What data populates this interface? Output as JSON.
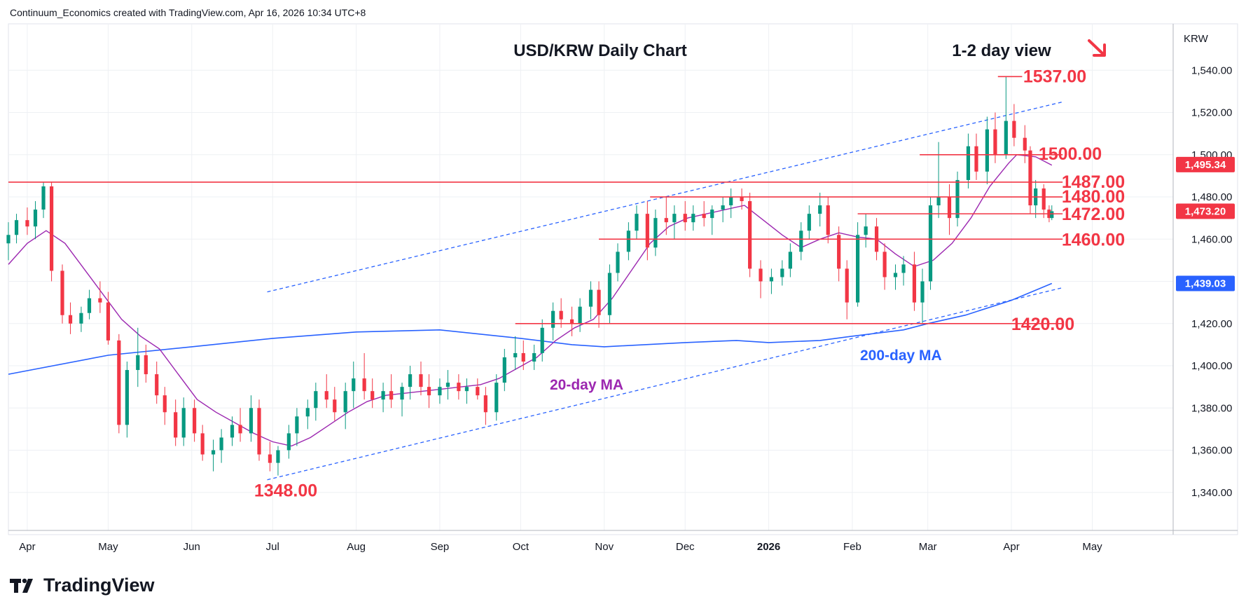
{
  "header": {
    "attribution": "Continuum_Economics created with TradingView.com, Apr 16, 2026 10:34 UTC+8"
  },
  "footer": {
    "brand": "TradingView"
  },
  "colors": {
    "up": "#089981",
    "down": "#f23645",
    "level": "#f23645",
    "ma20": "#9c27b0",
    "ma200": "#2962ff",
    "channel": "#2962ff",
    "last_badge": "#f23645",
    "ma20_badge": "#f23645",
    "ma200_badge": "#2962ff"
  },
  "chart_data": {
    "type": "candlestick",
    "title": "USD/KRW Daily Chart",
    "subtitle": "1-2 day view",
    "bias_icon": "arrow-down-right-icon",
    "currency_label": "KRW",
    "ylim": [
      1322,
      1562
    ],
    "y_ticks": [
      1340,
      1360,
      1380,
      1400,
      1420,
      1440,
      1460,
      1480,
      1500,
      1520,
      1540
    ],
    "y_tick_labels": [
      "1,340.00",
      "1,360.00",
      "1,380.00",
      "1,400.00",
      "1,420.00",
      "1,440.00",
      "1,460.00",
      "1,480.00",
      "1,500.00",
      "1,520.00",
      "1,540.00"
    ],
    "x_range": [
      "2025-03-25",
      "2026-05-31"
    ],
    "x_ticks": [
      {
        "date": "2025-04-01",
        "label": "Apr"
      },
      {
        "date": "2025-05-01",
        "label": "May"
      },
      {
        "date": "2025-06-01",
        "label": "Jun"
      },
      {
        "date": "2025-07-01",
        "label": "Jul"
      },
      {
        "date": "2025-08-01",
        "label": "Aug"
      },
      {
        "date": "2025-09-01",
        "label": "Sep"
      },
      {
        "date": "2025-10-01",
        "label": "Oct"
      },
      {
        "date": "2025-11-01",
        "label": "Nov"
      },
      {
        "date": "2025-12-01",
        "label": "Dec"
      },
      {
        "date": "2026-01-01",
        "label": "2026"
      },
      {
        "date": "2026-02-01",
        "label": "Feb"
      },
      {
        "date": "2026-03-01",
        "label": "Mar"
      },
      {
        "date": "2026-04-01",
        "label": "Apr"
      },
      {
        "date": "2026-05-01",
        "label": "May"
      }
    ],
    "price_badges": [
      {
        "label": "1,495.34",
        "value": 1495.34,
        "series": "ma20"
      },
      {
        "label": "1,473.20",
        "value": 1473.2,
        "series": "last"
      },
      {
        "label": "1,439.03",
        "value": 1439.03,
        "series": "ma200"
      }
    ],
    "levels": [
      {
        "value": 1537,
        "label": "1537.00",
        "from": "2026-03-27",
        "to": "2026-04-05"
      },
      {
        "value": 1500,
        "label": "1500.00",
        "from": "2026-02-26",
        "to": "2026-04-20"
      },
      {
        "value": 1487,
        "label": "1487.00",
        "from": "2025-03-25",
        "to": "2026-04-20"
      },
      {
        "value": 1480,
        "label": "1480.00",
        "from": "2025-11-18",
        "to": "2026-04-20"
      },
      {
        "value": 1472,
        "label": "1472.00",
        "from": "2026-02-03",
        "to": "2026-04-20"
      },
      {
        "value": 1460,
        "label": "1460.00",
        "from": "2025-10-30",
        "to": "2026-04-20"
      },
      {
        "value": 1420,
        "label": "1420.00",
        "from": "2025-09-29",
        "to": "2026-04-20"
      },
      {
        "value": 1348,
        "label": "1348.00",
        "from": null,
        "to": null
      }
    ],
    "channel": [
      {
        "from": [
          "2025-06-29",
          1435
        ],
        "to": [
          "2026-04-20",
          1525
        ]
      },
      {
        "from": [
          "2025-06-29",
          1346
        ],
        "to": [
          "2026-04-20",
          1437
        ]
      }
    ],
    "ma_labels": {
      "ma20": "20-day MA",
      "ma200": "200-day MA"
    },
    "ma20": [
      [
        "2025-03-25",
        1448
      ],
      [
        "2025-04-01",
        1458
      ],
      [
        "2025-04-08",
        1464
      ],
      [
        "2025-04-15",
        1458
      ],
      [
        "2025-04-22",
        1446
      ],
      [
        "2025-04-29",
        1434
      ],
      [
        "2025-05-06",
        1422
      ],
      [
        "2025-05-13",
        1414
      ],
      [
        "2025-05-20",
        1408
      ],
      [
        "2025-05-27",
        1396
      ],
      [
        "2025-06-03",
        1384
      ],
      [
        "2025-06-10",
        1378
      ],
      [
        "2025-06-17",
        1373
      ],
      [
        "2025-06-24",
        1368
      ],
      [
        "2025-07-01",
        1364
      ],
      [
        "2025-07-08",
        1362
      ],
      [
        "2025-07-15",
        1366
      ],
      [
        "2025-07-22",
        1372
      ],
      [
        "2025-07-29",
        1378
      ],
      [
        "2025-08-05",
        1383
      ],
      [
        "2025-08-12",
        1386
      ],
      [
        "2025-08-19",
        1387
      ],
      [
        "2025-08-26",
        1388
      ],
      [
        "2025-09-02",
        1389
      ],
      [
        "2025-09-09",
        1390
      ],
      [
        "2025-09-16",
        1391
      ],
      [
        "2025-09-23",
        1394
      ],
      [
        "2025-09-30",
        1399
      ],
      [
        "2025-10-07",
        1404
      ],
      [
        "2025-10-14",
        1412
      ],
      [
        "2025-10-21",
        1418
      ],
      [
        "2025-10-28",
        1422
      ],
      [
        "2025-11-04",
        1432
      ],
      [
        "2025-11-11",
        1445
      ],
      [
        "2025-11-18",
        1458
      ],
      [
        "2025-11-25",
        1466
      ],
      [
        "2025-12-02",
        1470
      ],
      [
        "2025-12-09",
        1472
      ],
      [
        "2025-12-16",
        1474
      ],
      [
        "2025-12-23",
        1476
      ],
      [
        "2025-12-30",
        1469
      ],
      [
        "2026-01-06",
        1462
      ],
      [
        "2026-01-13",
        1456
      ],
      [
        "2026-01-20",
        1460
      ],
      [
        "2026-01-27",
        1463
      ],
      [
        "2026-02-03",
        1461
      ],
      [
        "2026-02-10",
        1460
      ],
      [
        "2026-02-17",
        1453
      ],
      [
        "2026-02-24",
        1447
      ],
      [
        "2026-03-03",
        1450
      ],
      [
        "2026-03-10",
        1458
      ],
      [
        "2026-03-17",
        1470
      ],
      [
        "2026-03-24",
        1485
      ],
      [
        "2026-03-31",
        1496
      ],
      [
        "2026-04-03",
        1500
      ],
      [
        "2026-04-10",
        1499
      ],
      [
        "2026-04-16",
        1495
      ]
    ],
    "ma200": [
      [
        "2025-03-25",
        1396
      ],
      [
        "2025-05-01",
        1405
      ],
      [
        "2025-06-01",
        1409
      ],
      [
        "2025-07-01",
        1413
      ],
      [
        "2025-08-01",
        1416
      ],
      [
        "2025-09-01",
        1417
      ],
      [
        "2025-10-01",
        1413
      ],
      [
        "2025-10-20",
        1410
      ],
      [
        "2025-11-01",
        1409
      ],
      [
        "2025-12-01",
        1411
      ],
      [
        "2025-12-20",
        1412
      ],
      [
        "2026-01-01",
        1411
      ],
      [
        "2026-01-20",
        1412
      ],
      [
        "2026-02-01",
        1414
      ],
      [
        "2026-02-20",
        1417
      ],
      [
        "2026-03-01",
        1420
      ],
      [
        "2026-03-15",
        1424
      ],
      [
        "2026-04-01",
        1431
      ],
      [
        "2026-04-16",
        1439
      ]
    ],
    "candles": [
      [
        "2025-03-25",
        1458,
        1468,
        1450,
        1462
      ],
      [
        "2025-03-28",
        1462,
        1472,
        1458,
        1469
      ],
      [
        "2025-04-01",
        1469,
        1475,
        1462,
        1466
      ],
      [
        "2025-04-04",
        1466,
        1478,
        1460,
        1474
      ],
      [
        "2025-04-07",
        1474,
        1487,
        1470,
        1485
      ],
      [
        "2025-04-10",
        1485,
        1487,
        1440,
        1445
      ],
      [
        "2025-04-14",
        1445,
        1448,
        1420,
        1424
      ],
      [
        "2025-04-17",
        1424,
        1430,
        1415,
        1420
      ],
      [
        "2025-04-21",
        1420,
        1428,
        1416,
        1425
      ],
      [
        "2025-04-24",
        1425,
        1436,
        1422,
        1432
      ],
      [
        "2025-04-28",
        1432,
        1440,
        1425,
        1430
      ],
      [
        "2025-05-01",
        1430,
        1435,
        1410,
        1412
      ],
      [
        "2025-05-05",
        1412,
        1415,
        1368,
        1372
      ],
      [
        "2025-05-08",
        1372,
        1402,
        1366,
        1398
      ],
      [
        "2025-05-12",
        1398,
        1418,
        1390,
        1405
      ],
      [
        "2025-05-15",
        1405,
        1410,
        1392,
        1396
      ],
      [
        "2025-05-19",
        1396,
        1402,
        1382,
        1386
      ],
      [
        "2025-05-22",
        1386,
        1390,
        1372,
        1378
      ],
      [
        "2025-05-26",
        1378,
        1384,
        1362,
        1366
      ],
      [
        "2025-05-29",
        1366,
        1385,
        1362,
        1380
      ],
      [
        "2025-06-02",
        1380,
        1384,
        1364,
        1368
      ],
      [
        "2025-06-05",
        1368,
        1372,
        1355,
        1358
      ],
      [
        "2025-06-09",
        1358,
        1365,
        1350,
        1360
      ],
      [
        "2025-06-12",
        1360,
        1370,
        1354,
        1366
      ],
      [
        "2025-06-16",
        1366,
        1376,
        1362,
        1372
      ],
      [
        "2025-06-19",
        1372,
        1380,
        1364,
        1368
      ],
      [
        "2025-06-23",
        1368,
        1386,
        1364,
        1380
      ],
      [
        "2025-06-26",
        1380,
        1384,
        1355,
        1358
      ],
      [
        "2025-06-30",
        1358,
        1364,
        1350,
        1354
      ],
      [
        "2025-07-03",
        1354,
        1362,
        1348,
        1360
      ],
      [
        "2025-07-07",
        1360,
        1372,
        1356,
        1368
      ],
      [
        "2025-07-10",
        1368,
        1380,
        1362,
        1376
      ],
      [
        "2025-07-14",
        1376,
        1384,
        1370,
        1380
      ],
      [
        "2025-07-17",
        1380,
        1392,
        1374,
        1388
      ],
      [
        "2025-07-21",
        1388,
        1396,
        1380,
        1384
      ],
      [
        "2025-07-24",
        1384,
        1390,
        1374,
        1378
      ],
      [
        "2025-07-28",
        1378,
        1392,
        1370,
        1388
      ],
      [
        "2025-07-31",
        1388,
        1402,
        1380,
        1394
      ],
      [
        "2025-08-04",
        1394,
        1406,
        1384,
        1388
      ],
      [
        "2025-08-07",
        1388,
        1394,
        1380,
        1384
      ],
      [
        "2025-08-11",
        1384,
        1392,
        1378,
        1388
      ],
      [
        "2025-08-14",
        1388,
        1396,
        1380,
        1384
      ],
      [
        "2025-08-18",
        1384,
        1392,
        1376,
        1390
      ],
      [
        "2025-08-21",
        1390,
        1400,
        1384,
        1396
      ],
      [
        "2025-08-25",
        1396,
        1402,
        1386,
        1390
      ],
      [
        "2025-08-28",
        1390,
        1396,
        1380,
        1386
      ],
      [
        "2025-09-01",
        1386,
        1394,
        1382,
        1390
      ],
      [
        "2025-09-04",
        1390,
        1398,
        1384,
        1392
      ],
      [
        "2025-09-08",
        1392,
        1396,
        1384,
        1388
      ],
      [
        "2025-09-11",
        1388,
        1394,
        1382,
        1390
      ],
      [
        "2025-09-15",
        1390,
        1394,
        1384,
        1386
      ],
      [
        "2025-09-18",
        1386,
        1390,
        1372,
        1378
      ],
      [
        "2025-09-22",
        1378,
        1396,
        1374,
        1392
      ],
      [
        "2025-09-25",
        1392,
        1408,
        1388,
        1404
      ],
      [
        "2025-09-29",
        1404,
        1414,
        1398,
        1406
      ],
      [
        "2025-10-02",
        1406,
        1412,
        1398,
        1402
      ],
      [
        "2025-10-06",
        1402,
        1410,
        1398,
        1406
      ],
      [
        "2025-10-09",
        1406,
        1422,
        1402,
        1418
      ],
      [
        "2025-10-13",
        1418,
        1430,
        1412,
        1426
      ],
      [
        "2025-10-16",
        1426,
        1432,
        1418,
        1422
      ],
      [
        "2025-10-20",
        1422,
        1428,
        1414,
        1420
      ],
      [
        "2025-10-23",
        1420,
        1432,
        1416,
        1428
      ],
      [
        "2025-10-27",
        1428,
        1440,
        1422,
        1436
      ],
      [
        "2025-10-30",
        1436,
        1440,
        1418,
        1424
      ],
      [
        "2025-11-03",
        1424,
        1448,
        1420,
        1444
      ],
      [
        "2025-11-06",
        1444,
        1458,
        1440,
        1454
      ],
      [
        "2025-11-10",
        1454,
        1468,
        1450,
        1464
      ],
      [
        "2025-11-13",
        1464,
        1476,
        1460,
        1472
      ],
      [
        "2025-11-17",
        1472,
        1478,
        1450,
        1456
      ],
      [
        "2025-11-20",
        1456,
        1474,
        1452,
        1470
      ],
      [
        "2025-11-24",
        1470,
        1480,
        1462,
        1468
      ],
      [
        "2025-11-27",
        1468,
        1476,
        1460,
        1472
      ],
      [
        "2025-12-01",
        1472,
        1478,
        1464,
        1468
      ],
      [
        "2025-12-04",
        1468,
        1476,
        1464,
        1472
      ],
      [
        "2025-12-08",
        1472,
        1478,
        1466,
        1470
      ],
      [
        "2025-12-11",
        1470,
        1476,
        1462,
        1474
      ],
      [
        "2025-12-15",
        1474,
        1480,
        1468,
        1476
      ],
      [
        "2025-12-18",
        1476,
        1484,
        1470,
        1480
      ],
      [
        "2025-12-22",
        1480,
        1484,
        1474,
        1478
      ],
      [
        "2025-12-25",
        1478,
        1482,
        1442,
        1446
      ],
      [
        "2025-12-29",
        1446,
        1450,
        1432,
        1440
      ],
      [
        "2026-01-02",
        1440,
        1446,
        1434,
        1442
      ],
      [
        "2026-01-06",
        1442,
        1450,
        1438,
        1446
      ],
      [
        "2026-01-09",
        1446,
        1458,
        1442,
        1454
      ],
      [
        "2026-01-13",
        1454,
        1468,
        1450,
        1464
      ],
      [
        "2026-01-16",
        1464,
        1476,
        1460,
        1472
      ],
      [
        "2026-01-20",
        1472,
        1482,
        1466,
        1476
      ],
      [
        "2026-01-23",
        1476,
        1480,
        1458,
        1462
      ],
      [
        "2026-01-27",
        1462,
        1466,
        1440,
        1446
      ],
      [
        "2026-01-30",
        1446,
        1450,
        1422,
        1430
      ],
      [
        "2026-02-03",
        1430,
        1468,
        1428,
        1462
      ],
      [
        "2026-02-06",
        1462,
        1472,
        1456,
        1466
      ],
      [
        "2026-02-10",
        1466,
        1470,
        1450,
        1454
      ],
      [
        "2026-02-13",
        1454,
        1458,
        1436,
        1442
      ],
      [
        "2026-02-17",
        1442,
        1448,
        1436,
        1444
      ],
      [
        "2026-02-20",
        1444,
        1452,
        1438,
        1448
      ],
      [
        "2026-02-24",
        1448,
        1454,
        1426,
        1430
      ],
      [
        "2026-02-27",
        1430,
        1446,
        1420,
        1440
      ],
      [
        "2026-03-02",
        1440,
        1480,
        1436,
        1476
      ],
      [
        "2026-03-05",
        1476,
        1506,
        1470,
        1480
      ],
      [
        "2026-03-09",
        1480,
        1486,
        1462,
        1470
      ],
      [
        "2026-03-12",
        1470,
        1492,
        1466,
        1488
      ],
      [
        "2026-03-16",
        1488,
        1510,
        1484,
        1504
      ],
      [
        "2026-03-19",
        1504,
        1510,
        1488,
        1492
      ],
      [
        "2026-03-23",
        1492,
        1518,
        1486,
        1512
      ],
      [
        "2026-03-26",
        1512,
        1520,
        1496,
        1500
      ],
      [
        "2026-03-30",
        1500,
        1537,
        1498,
        1516
      ],
      [
        "2026-04-02",
        1516,
        1524,
        1504,
        1508
      ],
      [
        "2026-04-06",
        1508,
        1514,
        1496,
        1502
      ],
      [
        "2026-04-08",
        1502,
        1504,
        1472,
        1476
      ],
      [
        "2026-04-10",
        1476,
        1488,
        1470,
        1484
      ],
      [
        "2026-04-13",
        1484,
        1486,
        1470,
        1474
      ],
      [
        "2026-04-15",
        1474,
        1476,
        1468,
        1470
      ],
      [
        "2026-04-16",
        1470,
        1476,
        1469,
        1473.2
      ]
    ]
  }
}
